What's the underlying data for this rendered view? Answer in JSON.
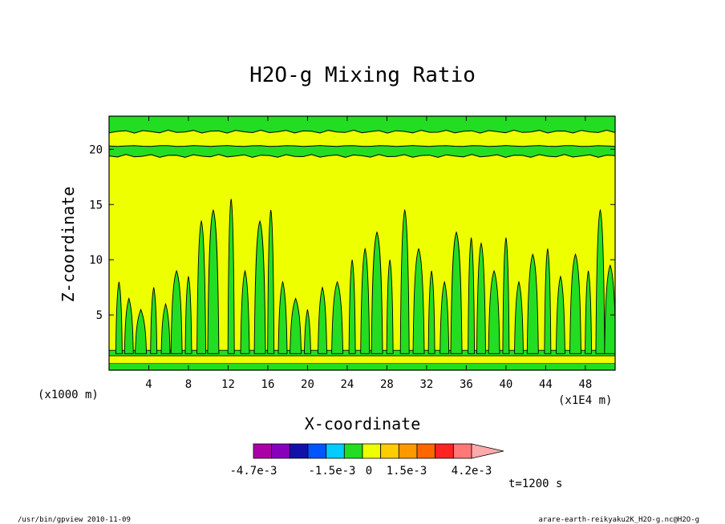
{
  "chart_data": {
    "type": "heatmap",
    "title": "H2O-g Mixing Ratio",
    "xlabel": "X-coordinate",
    "ylabel": "Z-coordinate",
    "x_unit_left": "(x1000 m)",
    "x_unit_right": "(x1E4 m)",
    "xlim": [
      0,
      51
    ],
    "ylim": [
      0,
      23
    ],
    "x_ticks": [
      "4",
      "8",
      "12",
      "16",
      "20",
      "24",
      "28",
      "32",
      "36",
      "40",
      "44",
      "48"
    ],
    "y_ticks": [
      "5",
      "10",
      "15",
      "20"
    ],
    "x_tick_values": [
      4,
      8,
      12,
      16,
      20,
      24,
      28,
      32,
      36,
      40,
      44,
      48
    ],
    "y_tick_values": [
      5,
      10,
      15,
      20
    ],
    "background_color": "#eeff00",
    "anomaly_color": "#22dd22",
    "upper_bands": [
      {
        "z_bottom": 19.4,
        "z_top": 20.3
      },
      {
        "z_bottom": 21.6,
        "z_top": 23.0
      }
    ],
    "surface_band": {
      "z_bottom": 1.3,
      "z_top": 1.8
    },
    "plumes": [
      [
        1.0,
        8.0
      ],
      [
        2.0,
        6.5
      ],
      [
        3.2,
        5.5
      ],
      [
        4.5,
        7.5
      ],
      [
        5.7,
        6.0
      ],
      [
        6.8,
        9.0
      ],
      [
        8.0,
        8.5
      ],
      [
        9.3,
        13.5
      ],
      [
        10.5,
        14.5
      ],
      [
        12.3,
        15.5
      ],
      [
        13.7,
        9.0
      ],
      [
        15.2,
        13.5
      ],
      [
        16.3,
        14.5
      ],
      [
        17.5,
        8.0
      ],
      [
        18.8,
        6.5
      ],
      [
        20.0,
        5.5
      ],
      [
        21.5,
        7.5
      ],
      [
        23.0,
        8.0
      ],
      [
        24.5,
        10.0
      ],
      [
        25.8,
        11.0
      ],
      [
        27.0,
        12.5
      ],
      [
        28.3,
        10.0
      ],
      [
        29.8,
        14.5
      ],
      [
        31.2,
        11.0
      ],
      [
        32.5,
        9.0
      ],
      [
        33.8,
        8.0
      ],
      [
        35.0,
        12.5
      ],
      [
        36.5,
        12.0
      ],
      [
        37.5,
        11.5
      ],
      [
        38.8,
        9.0
      ],
      [
        40.0,
        12.0
      ],
      [
        41.3,
        8.0
      ],
      [
        42.7,
        10.5
      ],
      [
        44.2,
        11.0
      ],
      [
        45.5,
        8.5
      ],
      [
        47.0,
        10.5
      ],
      [
        48.3,
        9.0
      ],
      [
        49.5,
        14.5
      ],
      [
        50.5,
        9.5
      ]
    ],
    "colorbar": {
      "colors": [
        "#aa00aa",
        "#8800bb",
        "#1111aa",
        "#0055ff",
        "#00ccff",
        "#22dd22",
        "#eeff00",
        "#ffcc00",
        "#ff9900",
        "#ff6600",
        "#ff2222",
        "#ff7777",
        "#ffaaaa"
      ],
      "labels": [
        "-4.7e-3",
        "-1.5e-3",
        "0",
        "1.5e-3",
        "4.2e-3"
      ]
    },
    "time_label": "t=1200 s",
    "footer_left": "/usr/bin/gpview   2010-11-09",
    "footer_right": "arare-earth-reikyaku2K_H2O-g.nc@H2O-g"
  }
}
